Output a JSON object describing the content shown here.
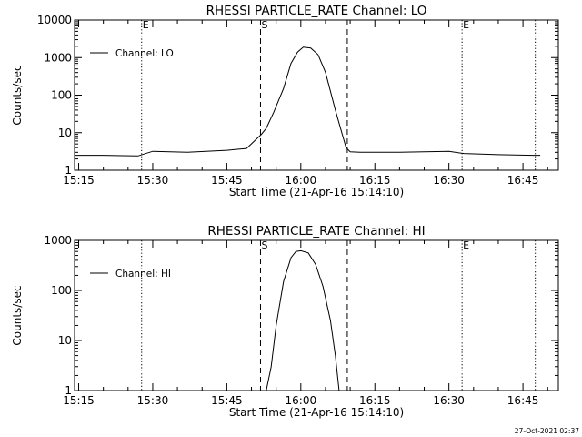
{
  "chart_data": [
    {
      "type": "line",
      "title": "RHESSI PARTICLE_RATE Channel: LO",
      "xlabel": "Start Time (21-Apr-16 15:14:10)",
      "ylabel": "Counts/sec",
      "yscale": "log",
      "ylim": [
        1,
        10000
      ],
      "yticks": [
        1,
        10,
        100,
        1000,
        10000
      ],
      "yticklabels": [
        "1",
        "10",
        "100",
        "1000",
        "10000"
      ],
      "xlim": [
        "15:14:10",
        "16:52:10"
      ],
      "xticks": [
        "15:15",
        "15:30",
        "15:45",
        "16:00",
        "16:15",
        "16:30",
        "16:45"
      ],
      "grid": false,
      "legend": {
        "position": "top-left",
        "entries": [
          "Channel: LO"
        ]
      },
      "vlines": [
        {
          "x": "15:27:45",
          "style": "dotted",
          "label": "E"
        },
        {
          "x": "15:51:50",
          "style": "dashed",
          "label": "S"
        },
        {
          "x": "16:09:25",
          "style": "dashed",
          "label": ""
        },
        {
          "x": "16:32:40",
          "style": "dotted",
          "label": "E"
        },
        {
          "x": "16:47:30",
          "style": "dotted",
          "label": ""
        }
      ],
      "series": [
        {
          "name": "Channel: LO",
          "x": [
            "15:14:10",
            "15:20:00",
            "15:27:00",
            "15:30:00",
            "15:37:00",
            "15:45:00",
            "15:49:00",
            "15:52:00",
            "15:53:00",
            "15:54:30",
            "15:56:30",
            "15:58:00",
            "15:59:20",
            "16:00:30",
            "16:02:00",
            "16:03:30",
            "16:05:00",
            "16:07:00",
            "16:08:30",
            "16:09:10",
            "16:10:00",
            "16:12:00",
            "16:20:00",
            "16:30:00",
            "16:33:00",
            "16:40:00",
            "16:47:00",
            "16:48:30"
          ],
          "y": [
            2.5,
            2.5,
            2.4,
            3.2,
            3.0,
            3.4,
            3.8,
            9,
            13,
            35,
            150,
            700,
            1400,
            1900,
            1800,
            1200,
            400,
            40,
            8,
            4,
            3.1,
            3.0,
            3.0,
            3.2,
            2.8,
            2.6,
            2.5,
            2.5
          ]
        }
      ]
    },
    {
      "type": "line",
      "title": "RHESSI PARTICLE_RATE Channel: HI",
      "xlabel": "Start Time (21-Apr-16 15:14:10)",
      "ylabel": "Counts/sec",
      "yscale": "log",
      "ylim": [
        1,
        1000
      ],
      "yticks": [
        1,
        10,
        100,
        1000
      ],
      "yticklabels": [
        "1",
        "10",
        "100",
        "1000"
      ],
      "xlim": [
        "15:14:10",
        "16:52:10"
      ],
      "xticks": [
        "15:15",
        "15:30",
        "15:45",
        "16:00",
        "16:15",
        "16:30",
        "16:45"
      ],
      "grid": false,
      "legend": {
        "position": "top-left",
        "entries": [
          "Channel: HI"
        ]
      },
      "vlines": [
        {
          "x": "15:27:45",
          "style": "dotted",
          "label": ""
        },
        {
          "x": "15:51:50",
          "style": "dashed",
          "label": "S"
        },
        {
          "x": "16:09:25",
          "style": "dashed",
          "label": ""
        },
        {
          "x": "16:32:40",
          "style": "dotted",
          "label": "E"
        },
        {
          "x": "16:47:30",
          "style": "dotted",
          "label": ""
        }
      ],
      "series": [
        {
          "name": "Channel: HI",
          "x": [
            "15:53:00",
            "15:54:00",
            "15:55:00",
            "15:56:30",
            "15:58:00",
            "15:59:00",
            "16:00:00",
            "16:01:30",
            "16:03:00",
            "16:04:30",
            "16:06:00",
            "16:07:00",
            "16:07:45"
          ],
          "y": [
            1,
            3,
            20,
            150,
            450,
            600,
            620,
            560,
            330,
            120,
            25,
            5,
            1
          ]
        }
      ]
    }
  ],
  "footer": {
    "timestamp": "27-Oct-2021 02:37"
  }
}
